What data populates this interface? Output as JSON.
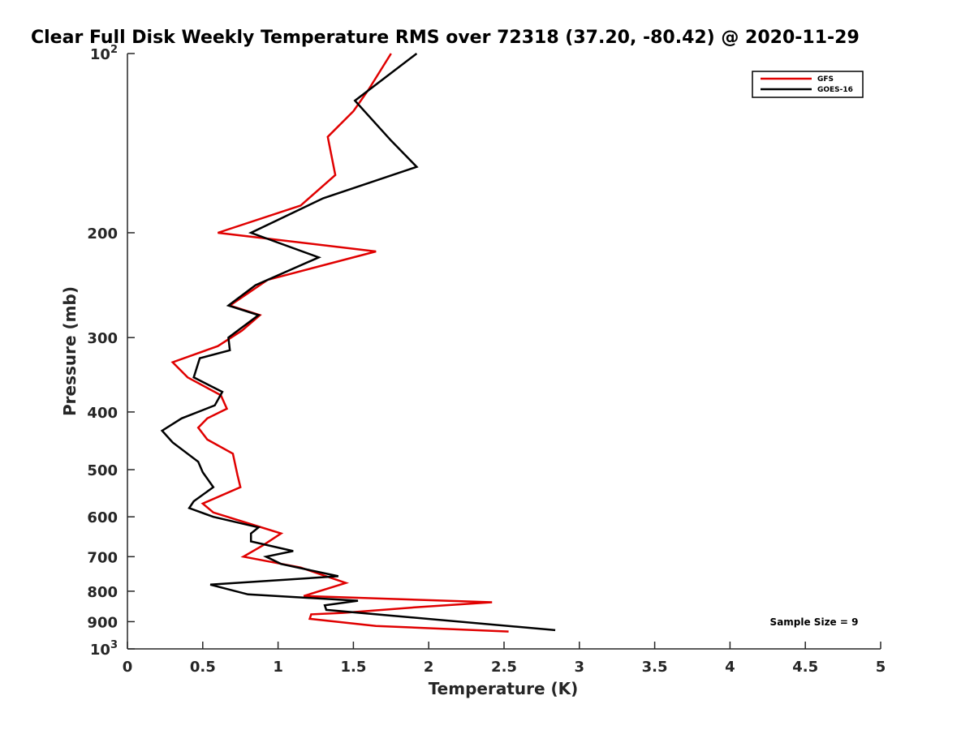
{
  "chart_data": {
    "type": "line",
    "title": "Clear Full Disk Weekly Temperature RMS over 72318 (37.20, -80.42) @ 2020-11-29",
    "xlabel": "Temperature (K)",
    "ylabel": "Pressure (mb)",
    "xlim": [
      0,
      5
    ],
    "ylim": [
      100,
      1000
    ],
    "y_scale": "log",
    "y_reversed": true,
    "x_ticks": [
      "0",
      "0.5",
      "1",
      "1.5",
      "2",
      "2.5",
      "3",
      "3.5",
      "4",
      "4.5",
      "5"
    ],
    "y_ticks": [
      {
        "value": 100,
        "base": "10",
        "exp": "2"
      },
      {
        "value": 200,
        "label": "200"
      },
      {
        "value": 300,
        "label": "300"
      },
      {
        "value": 400,
        "label": "400"
      },
      {
        "value": 500,
        "label": "500"
      },
      {
        "value": 600,
        "label": "600"
      },
      {
        "value": 700,
        "label": "700"
      },
      {
        "value": 800,
        "label": "800"
      },
      {
        "value": 900,
        "label": "900"
      },
      {
        "value": 1000,
        "base": "10",
        "exp": "3"
      }
    ],
    "grid": false,
    "legend_position": "top-right",
    "annotation": "Sample Size = 9",
    "series": [
      {
        "name": "GFS",
        "color": "#e00000",
        "points": [
          [
            1.75,
            100
          ],
          [
            1.6,
            115
          ],
          [
            1.5,
            125
          ],
          [
            1.33,
            138
          ],
          [
            1.38,
            160
          ],
          [
            1.15,
            180
          ],
          [
            0.6,
            200
          ],
          [
            1.65,
            215
          ],
          [
            0.93,
            240
          ],
          [
            0.68,
            265
          ],
          [
            0.88,
            275
          ],
          [
            0.76,
            292
          ],
          [
            0.6,
            310
          ],
          [
            0.3,
            330
          ],
          [
            0.4,
            350
          ],
          [
            0.62,
            375
          ],
          [
            0.66,
            395
          ],
          [
            0.53,
            410
          ],
          [
            0.47,
            425
          ],
          [
            0.53,
            445
          ],
          [
            0.7,
            470
          ],
          [
            0.73,
            510
          ],
          [
            0.75,
            535
          ],
          [
            0.5,
            570
          ],
          [
            0.57,
            590
          ],
          [
            1.02,
            640
          ],
          [
            0.9,
            670
          ],
          [
            0.77,
            700
          ],
          [
            1.15,
            730
          ],
          [
            1.45,
            775
          ],
          [
            1.17,
            815
          ],
          [
            2.42,
            835
          ],
          [
            1.95,
            850
          ],
          [
            1.43,
            870
          ],
          [
            1.22,
            875
          ],
          [
            1.21,
            890
          ],
          [
            1.65,
            915
          ],
          [
            2.53,
            935
          ]
        ]
      },
      {
        "name": "GOES-16",
        "color": "#000000",
        "points": [
          [
            1.92,
            100
          ],
          [
            1.51,
            120
          ],
          [
            1.75,
            140
          ],
          [
            1.92,
            155
          ],
          [
            1.3,
            175
          ],
          [
            0.82,
            200
          ],
          [
            1.27,
            220
          ],
          [
            0.85,
            245
          ],
          [
            0.67,
            265
          ],
          [
            0.87,
            275
          ],
          [
            0.67,
            300
          ],
          [
            0.68,
            315
          ],
          [
            0.48,
            325
          ],
          [
            0.44,
            350
          ],
          [
            0.63,
            370
          ],
          [
            0.58,
            390
          ],
          [
            0.36,
            410
          ],
          [
            0.23,
            430
          ],
          [
            0.3,
            450
          ],
          [
            0.47,
            485
          ],
          [
            0.5,
            505
          ],
          [
            0.57,
            535
          ],
          [
            0.44,
            565
          ],
          [
            0.41,
            580
          ],
          [
            0.57,
            600
          ],
          [
            0.87,
            625
          ],
          [
            0.82,
            640
          ],
          [
            0.82,
            660
          ],
          [
            1.1,
            685
          ],
          [
            0.92,
            700
          ],
          [
            1.02,
            720
          ],
          [
            1.4,
            755
          ],
          [
            0.55,
            780
          ],
          [
            0.8,
            810
          ],
          [
            1.53,
            830
          ],
          [
            1.31,
            845
          ],
          [
            1.32,
            860
          ],
          [
            2.84,
            930
          ]
        ]
      }
    ]
  }
}
